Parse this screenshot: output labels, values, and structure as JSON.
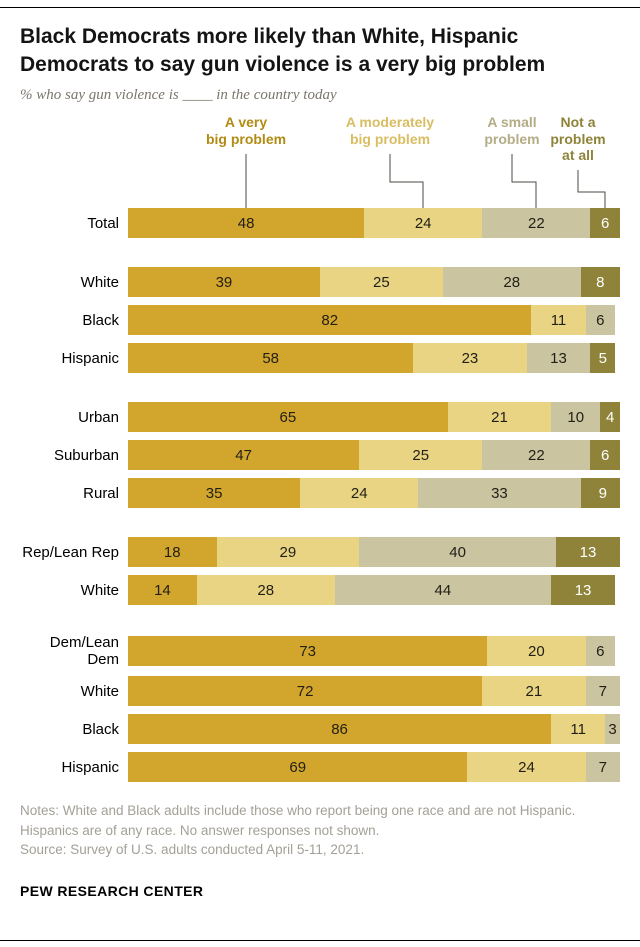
{
  "header": {
    "title": "Black Democrats more likely than White, Hispanic Democrats to say gun violence is a very big problem",
    "subtitle": "% who say gun violence is ____ in the country today"
  },
  "legend": {
    "items": [
      {
        "label": "A very big problem",
        "lines": [
          "A very",
          "big problem"
        ],
        "color": "#b18b14"
      },
      {
        "label": "A moderately big problem",
        "lines": [
          "A moderately",
          "big problem"
        ],
        "color": "#d9bd62"
      },
      {
        "label": "A small problem",
        "lines": [
          "A small",
          "problem"
        ],
        "color": "#b3ac85"
      },
      {
        "label": "Not a problem at all",
        "lines": [
          "Not a",
          "problem",
          "at all"
        ],
        "color": "#8e8339"
      }
    ]
  },
  "chart_data": {
    "type": "bar",
    "stacked": true,
    "orientation": "horizontal",
    "units": "percent",
    "title": "Black Democrats more likely than White, Hispanic Democrats to say gun violence is a very big problem",
    "segments": [
      "A very big problem",
      "A moderately big problem",
      "A small problem",
      "Not a problem at all"
    ],
    "colors": [
      "#d2a52c",
      "#e9d484",
      "#cac4a1",
      "#8e8339"
    ],
    "xlim": [
      0,
      100
    ],
    "rows": [
      {
        "label": "Total",
        "values": [
          48,
          24,
          22,
          6
        ],
        "gap_before": false
      },
      {
        "label": "White",
        "values": [
          39,
          25,
          28,
          8
        ],
        "gap_before": true
      },
      {
        "label": "Black",
        "values": [
          82,
          11,
          6,
          null
        ],
        "gap_before": false
      },
      {
        "label": "Hispanic",
        "values": [
          58,
          23,
          13,
          5
        ],
        "gap_before": false
      },
      {
        "label": "Urban",
        "values": [
          65,
          21,
          10,
          4
        ],
        "gap_before": true
      },
      {
        "label": "Suburban",
        "values": [
          47,
          25,
          22,
          6
        ],
        "gap_before": false
      },
      {
        "label": "Rural",
        "values": [
          35,
          24,
          33,
          9
        ],
        "gap_before": false
      },
      {
        "label": "Rep/Lean Rep",
        "values": [
          18,
          29,
          40,
          13
        ],
        "gap_before": true
      },
      {
        "label": "White",
        "values": [
          14,
          28,
          44,
          13
        ],
        "gap_before": false
      },
      {
        "label": "Dem/Lean Dem",
        "values": [
          73,
          20,
          6,
          null
        ],
        "gap_before": true
      },
      {
        "label": "White",
        "values": [
          72,
          21,
          7,
          null
        ],
        "gap_before": false
      },
      {
        "label": "Black",
        "values": [
          86,
          11,
          3,
          null
        ],
        "gap_before": false
      },
      {
        "label": "Hispanic",
        "values": [
          69,
          24,
          7,
          null
        ],
        "gap_before": false
      }
    ]
  },
  "notes": {
    "line1": "Notes: White and Black adults include those who report being one race and are not Hispanic. Hispanics are of any race. No answer responses not shown.",
    "line2": "Source: Survey of U.S. adults conducted April 5-11, 2021."
  },
  "footer": {
    "brand": "PEW RESEARCH CENTER"
  }
}
